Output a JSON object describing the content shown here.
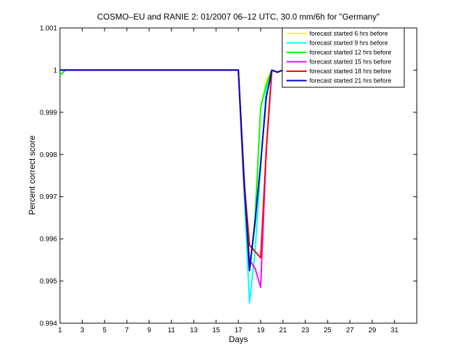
{
  "chart_data": {
    "type": "line",
    "title": "COSMO–EU and RANIE 2: 01/2007 06–12 UTC, 30.0 mm/6h for \"Germany\"",
    "xlabel": "Days",
    "ylabel": "Percent correct score",
    "xlim": [
      1,
      33
    ],
    "ylim": [
      0.994,
      1.001
    ],
    "x_ticks": [
      1,
      3,
      5,
      7,
      9,
      11,
      13,
      15,
      17,
      19,
      21,
      23,
      25,
      27,
      29,
      31
    ],
    "x_tick_labels": [
      "1",
      "3",
      "5",
      "7",
      "9",
      "11",
      "13",
      "15",
      "17",
      "19",
      "21",
      "23",
      "25",
      "27",
      "29",
      "31"
    ],
    "y_ticks": [
      0.994,
      0.995,
      0.996,
      0.997,
      0.998,
      0.999,
      1,
      1.001
    ],
    "y_tick_labels": [
      "0.994",
      "0.995",
      "0.996",
      "0.997",
      "0.998",
      "0.999",
      "1",
      "1.001"
    ],
    "grid": false,
    "legend_position": "top-right",
    "series": [
      {
        "name": "forecast started 6 hrs before",
        "color": "#ffff00",
        "points": [
          [
            1,
            0.99988
          ],
          [
            1.5,
            1
          ],
          [
            17,
            1
          ],
          [
            17.5,
            0.9971
          ],
          [
            18,
            0.9954
          ],
          [
            18.5,
            0.9963
          ],
          [
            19,
            0.9991
          ],
          [
            19.5,
            0.99975
          ],
          [
            20,
            1
          ],
          [
            20.5,
            0.99995
          ],
          [
            21,
            1
          ],
          [
            21.5,
            1.00002
          ],
          [
            22,
            1
          ],
          [
            31,
            1
          ]
        ]
      },
      {
        "name": "forecast started 9 hrs before",
        "color": "#00ffff",
        "points": [
          [
            1,
            0.99988
          ],
          [
            1.5,
            1
          ],
          [
            17,
            1
          ],
          [
            17.5,
            0.9972
          ],
          [
            18,
            0.99448
          ],
          [
            18.5,
            0.9957
          ],
          [
            19,
            0.9977
          ],
          [
            19.5,
            0.99955
          ],
          [
            20,
            1
          ],
          [
            20.5,
            0.99995
          ],
          [
            21,
            1
          ],
          [
            21.5,
            1.00002
          ],
          [
            22,
            1
          ],
          [
            31,
            1
          ]
        ]
      },
      {
        "name": "forecast started 12 hrs before",
        "color": "#00ff00",
        "points": [
          [
            1,
            0.99988
          ],
          [
            1.5,
            1
          ],
          [
            17,
            1
          ],
          [
            17.5,
            0.9972
          ],
          [
            18,
            0.99524
          ],
          [
            18.5,
            0.9965
          ],
          [
            19,
            0.99912
          ],
          [
            19.5,
            0.99965
          ],
          [
            20,
            1
          ],
          [
            20.5,
            0.99995
          ],
          [
            21,
            1
          ],
          [
            21.5,
            1.00002
          ],
          [
            22,
            1
          ],
          [
            31,
            1
          ]
        ]
      },
      {
        "name": "forecast started 15 hrs before",
        "color": "#ff00ff",
        "points": [
          [
            1,
            1
          ],
          [
            17,
            1
          ],
          [
            17.5,
            0.9973
          ],
          [
            18,
            0.9955
          ],
          [
            18.5,
            0.9953
          ],
          [
            19,
            0.99485
          ],
          [
            19.5,
            0.9981
          ],
          [
            20,
            1
          ],
          [
            20.5,
            0.99995
          ],
          [
            21,
            1
          ],
          [
            21.5,
            1.00002
          ],
          [
            22,
            1
          ],
          [
            31,
            1
          ]
        ]
      },
      {
        "name": "forecast started 18 hrs before",
        "color": "#ff0000",
        "points": [
          [
            1,
            1
          ],
          [
            17,
            1
          ],
          [
            17.5,
            0.9974
          ],
          [
            18,
            0.99585
          ],
          [
            18.5,
            0.9957
          ],
          [
            19,
            0.99555
          ],
          [
            19.5,
            0.9981
          ],
          [
            20,
            1
          ],
          [
            20.5,
            0.99995
          ],
          [
            21,
            1
          ],
          [
            21.5,
            1.00002
          ],
          [
            22,
            1
          ],
          [
            31,
            1
          ]
        ]
      },
      {
        "name": "forecast started 21 hrs before",
        "color": "#0000cc",
        "points": [
          [
            1,
            1
          ],
          [
            17,
            1
          ],
          [
            17.5,
            0.9975
          ],
          [
            18,
            0.99525
          ],
          [
            18.5,
            0.9964
          ],
          [
            19,
            0.9978
          ],
          [
            19.5,
            0.99935
          ],
          [
            20,
            1
          ],
          [
            20.5,
            0.99995
          ],
          [
            21,
            1
          ],
          [
            21.5,
            1.00002
          ],
          [
            22,
            1
          ],
          [
            31,
            1
          ]
        ]
      }
    ]
  }
}
